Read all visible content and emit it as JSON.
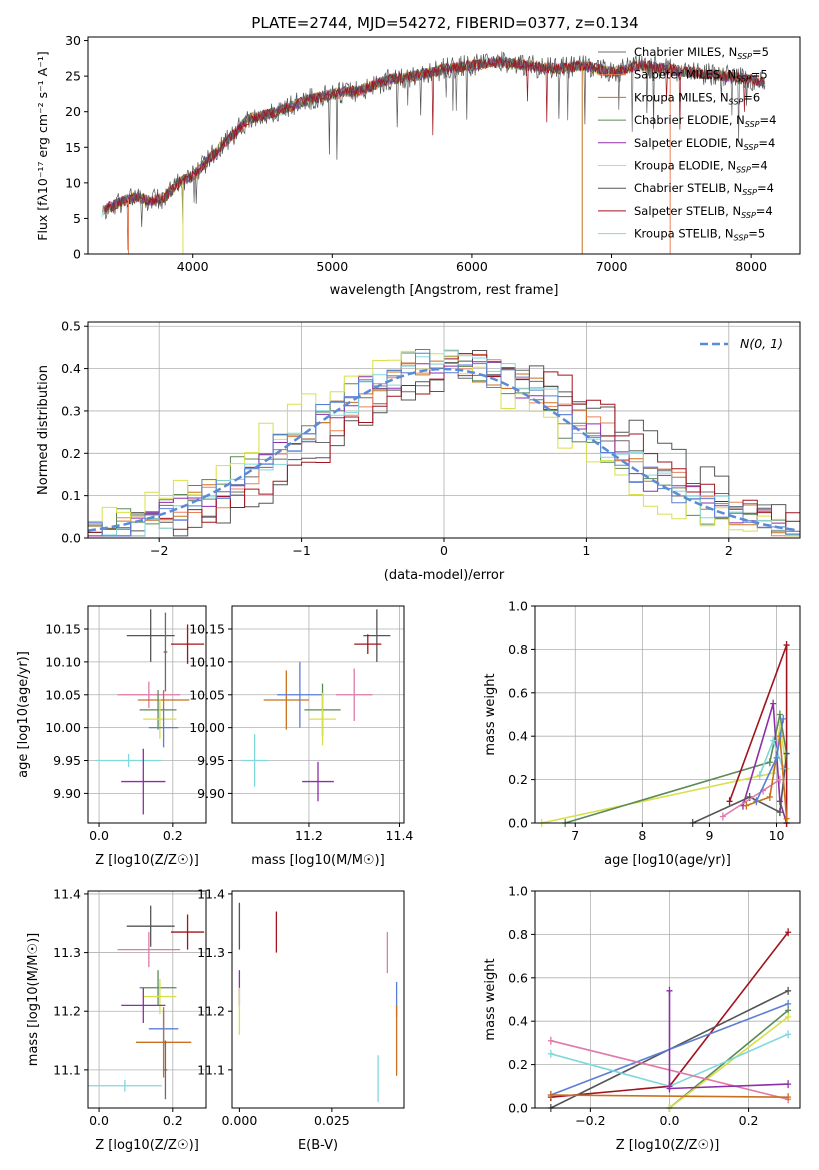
{
  "figure_title": "PLATE=2744, MJD=54272, FIBERID=0377, z=0.134",
  "colors": {
    "Chabrier MILES": "#6c6c6c",
    "Salpeter MILES": "#e8825a",
    "Kroupa MILES": "#c9701e",
    "Chabrier ELODIE": "#5a8a55",
    "Salpeter ELODIE": "#8e2fa8",
    "Kroupa ELODIE": "#d7e04a",
    "Chabrier STELIB": "#555555",
    "Salpeter STELIB": "#a0141e",
    "Kroupa STELIB": "#7fd8dc",
    "pink": "#e07aa8",
    "blue": "#5a7fd6",
    "green2": "#6fbf6a",
    "normal": "#5b8ad6",
    "grid": "#b0b0b0"
  },
  "chart_data": [
    {
      "id": "spectrum",
      "type": "line",
      "title": "PLATE=2744, MJD=54272, FIBERID=0377, z=0.134",
      "xlabel": "wavelength [Angstrom, rest frame]",
      "ylabel": "Flux [f_λ 10^-17 erg cm^-2 s^-1 A^-1]",
      "xlim": [
        3250,
        8350
      ],
      "ylim": [
        0,
        30.5
      ],
      "xticks": [
        4000,
        5000,
        6000,
        7000,
        8000
      ],
      "yticks": [
        0,
        5,
        10,
        15,
        20,
        25,
        30
      ],
      "grid": false,
      "legend_position": "upper right",
      "series": [
        {
          "name": "Chabrier MILES, N_SSP=5"
        },
        {
          "name": "Salpeter MILES, N_SSP=5"
        },
        {
          "name": "Kroupa MILES, N_SSP=6"
        },
        {
          "name": "Chabrier ELODIE, N_SSP=4"
        },
        {
          "name": "Salpeter ELODIE, N_SSP=4"
        },
        {
          "name": "Kroupa ELODIE, N_SSP=4"
        },
        {
          "name": "Chabrier STELIB, N_SSP=4"
        },
        {
          "name": "Salpeter STELIB, N_SSP=4"
        },
        {
          "name": "Kroupa STELIB, N_SSP=5"
        }
      ],
      "continuum": {
        "x": [
          3350,
          3500,
          3600,
          3700,
          3800,
          3900,
          4000,
          4100,
          4200,
          4300,
          4400,
          4600,
          4800,
          5000,
          5200,
          5400,
          5600,
          5800,
          6000,
          6200,
          6400,
          6600,
          6800,
          7000,
          7200,
          7400,
          7600,
          7800,
          8000,
          8100
        ],
        "y": [
          6,
          7.5,
          8,
          7.5,
          8,
          10,
          11,
          13,
          15,
          17,
          19,
          20,
          21.5,
          22.5,
          23,
          24.5,
          25,
          26,
          26.5,
          27,
          26.5,
          26,
          26.5,
          25.5,
          26.5,
          26,
          25.5,
          25,
          24.5,
          24
        ]
      }
    },
    {
      "id": "residual_hist",
      "type": "line",
      "xlabel": "(data-model)/error",
      "ylabel": "Normed distribution",
      "xlim": [
        -2.5,
        2.5
      ],
      "ylim": [
        0,
        0.51
      ],
      "xticks": [
        -2,
        -1,
        0,
        1,
        2
      ],
      "yticks": [
        0.0,
        0.1,
        0.2,
        0.3,
        0.4,
        0.5
      ],
      "grid": true,
      "legend_position": "upper right",
      "legend": [
        "N(0,1)"
      ],
      "bin_width": 0.1
    },
    {
      "id": "age_vs_Z",
      "type": "scatter",
      "xlabel": "Z [log10(Z/Z☉)]",
      "ylabel": "age [log10(age/yr)]",
      "xlim": [
        -0.03,
        0.29
      ],
      "ylim": [
        9.855,
        10.185
      ],
      "xticks": [
        0.0,
        0.2
      ],
      "yticks": [
        9.9,
        9.95,
        10.0,
        10.05,
        10.1,
        10.15
      ],
      "grid": true,
      "points": [
        {
          "c": "Chabrier STELIB",
          "x": 0.14,
          "y": 10.14,
          "xe": 0.065,
          "ye": 0.04
        },
        {
          "c": "Salpeter STELIB",
          "x": 0.24,
          "y": 10.127,
          "xe": 0.045,
          "ye": 0.03
        },
        {
          "c": "pink",
          "x": 0.135,
          "y": 10.05,
          "xe": 0.085,
          "ye": 0.02
        },
        {
          "c": "Kroupa MILES",
          "x": 0.175,
          "y": 10.042,
          "xe": 0.07,
          "ye": 0.015
        },
        {
          "c": "Chabrier ELODIE",
          "x": 0.16,
          "y": 10.027,
          "xe": 0.05,
          "ye": 0.03
        },
        {
          "c": "Kroupa ELODIE",
          "x": 0.165,
          "y": 10.013,
          "xe": 0.045,
          "ye": 0.03
        },
        {
          "c": "blue",
          "x": 0.175,
          "y": 10.0,
          "xe": 0.04,
          "ye": 0.03
        },
        {
          "c": "Kroupa STELIB",
          "x": 0.08,
          "y": 9.95,
          "xe": 0.09,
          "ye": 0.01
        },
        {
          "c": "Salpeter ELODIE",
          "x": 0.12,
          "y": 9.918,
          "xe": 0.06,
          "ye": 0.05
        },
        {
          "c": "Chabrier MILES",
          "x": 0.18,
          "y": 10.115,
          "xe": 0.005,
          "ye": 0.06
        }
      ]
    },
    {
      "id": "age_vs_mass",
      "type": "scatter",
      "xlabel": "mass [log10(M/M☉)]",
      "ylabel": "",
      "xlim": [
        11.03,
        11.41
      ],
      "ylim": [
        9.855,
        10.185
      ],
      "xticks": [
        11.2,
        11.4
      ],
      "yticks": [
        9.9,
        9.95,
        10.0,
        10.05,
        10.1,
        10.15
      ],
      "grid": true,
      "points": [
        {
          "c": "Chabrier STELIB",
          "x": 11.35,
          "y": 10.14,
          "xe": 0.03,
          "ye": 0.04
        },
        {
          "c": "Salpeter STELIB",
          "x": 11.33,
          "y": 10.127,
          "xe": 0.03,
          "ye": 0.015
        },
        {
          "c": "pink",
          "x": 11.3,
          "y": 10.05,
          "xe": 0.04,
          "ye": 0.04
        },
        {
          "c": "Kroupa MILES",
          "x": 11.15,
          "y": 10.042,
          "xe": 0.05,
          "ye": 0.045
        },
        {
          "c": "blue",
          "x": 11.18,
          "y": 10.05,
          "xe": 0.05,
          "ye": 0.05
        },
        {
          "c": "Chabrier ELODIE",
          "x": 11.23,
          "y": 10.027,
          "xe": 0.04,
          "ye": 0.04
        },
        {
          "c": "Kroupa ELODIE",
          "x": 11.23,
          "y": 10.013,
          "xe": 0.03,
          "ye": 0.04
        },
        {
          "c": "Kroupa STELIB",
          "x": 11.08,
          "y": 9.95,
          "xe": 0.03,
          "ye": 0.04
        },
        {
          "c": "Salpeter ELODIE",
          "x": 11.22,
          "y": 9.918,
          "xe": 0.035,
          "ye": 0.03
        }
      ]
    },
    {
      "id": "weight_vs_age",
      "type": "line",
      "xlabel": "age [log10(age/yr)]",
      "ylabel": "mass weight",
      "xlim": [
        6.4,
        10.35
      ],
      "ylim": [
        0,
        1.0
      ],
      "xticks": [
        7,
        8,
        9,
        10
      ],
      "yticks": [
        0.0,
        0.2,
        0.4,
        0.6,
        0.8,
        1.0
      ],
      "grid": true,
      "series": [
        {
          "c": "Kroupa ELODIE",
          "x": [
            6.5,
            9.95,
            10.05,
            10.15
          ],
          "y": [
            0.0,
            0.23,
            0.45,
            0.25
          ]
        },
        {
          "c": "Chabrier ELODIE",
          "x": [
            6.85,
            9.9,
            10.05,
            10.15
          ],
          "y": [
            0.0,
            0.28,
            0.5,
            0.32
          ]
        },
        {
          "c": "Salpeter ELODIE",
          "x": [
            9.5,
            9.95,
            10.05,
            10.15
          ],
          "y": [
            0.08,
            0.55,
            0.1,
            0.0
          ]
        },
        {
          "c": "Salpeter STELIB",
          "x": [
            9.3,
            10.15,
            10.15
          ],
          "y": [
            0.1,
            0.82,
            0.0
          ]
        },
        {
          "c": "Chabrier STELIB",
          "x": [
            8.75,
            9.6,
            10.05,
            10.15
          ],
          "y": [
            0.0,
            0.12,
            0.05,
            0.32
          ]
        },
        {
          "c": "Kroupa STELIB",
          "x": [
            9.75,
            9.95,
            10.1
          ],
          "y": [
            0.22,
            0.38,
            0.25
          ]
        },
        {
          "c": "pink",
          "x": [
            9.2,
            9.8,
            10.05
          ],
          "y": [
            0.03,
            0.15,
            0.2
          ]
        },
        {
          "c": "Kroupa MILES",
          "x": [
            9.55,
            9.9,
            10.05,
            10.15
          ],
          "y": [
            0.08,
            0.12,
            0.4,
            0.02
          ]
        },
        {
          "c": "blue",
          "x": [
            9.7,
            10.0,
            10.1
          ],
          "y": [
            0.1,
            0.3,
            0.48
          ]
        }
      ]
    },
    {
      "id": "mass_vs_Z",
      "type": "scatter",
      "xlabel": "Z [log10(Z/Z☉)]",
      "ylabel": "mass [log10(M/M☉)]",
      "xlim": [
        -0.03,
        0.29
      ],
      "ylim": [
        11.035,
        11.405
      ],
      "xticks": [
        0.0,
        0.2
      ],
      "yticks": [
        11.1,
        11.2,
        11.3,
        11.4
      ],
      "grid": true,
      "points": [
        {
          "c": "Chabrier STELIB",
          "x": 0.14,
          "y": 11.345,
          "xe": 0.065,
          "ye": 0.035
        },
        {
          "c": "Salpeter STELIB",
          "x": 0.24,
          "y": 11.335,
          "xe": 0.045,
          "ye": 0.03
        },
        {
          "c": "pink",
          "x": 0.135,
          "y": 11.305,
          "xe": 0.085,
          "ye": 0.03
        },
        {
          "c": "Chabrier ELODIE",
          "x": 0.16,
          "y": 11.24,
          "xe": 0.05,
          "ye": 0.03
        },
        {
          "c": "Kroupa ELODIE",
          "x": 0.165,
          "y": 11.225,
          "xe": 0.045,
          "ye": 0.03
        },
        {
          "c": "Salpeter ELODIE",
          "x": 0.12,
          "y": 11.21,
          "xe": 0.06,
          "ye": 0.03
        },
        {
          "c": "blue",
          "x": 0.175,
          "y": 11.17,
          "xe": 0.04,
          "ye": 0.03
        },
        {
          "c": "Kroupa MILES",
          "x": 0.175,
          "y": 11.147,
          "xe": 0.075,
          "ye": 0.06
        },
        {
          "c": "Kroupa STELIB",
          "x": 0.07,
          "y": 11.073,
          "xe": 0.1,
          "ye": 0.01
        },
        {
          "c": "Chabrier MILES",
          "x": 0.18,
          "y": 11.1,
          "xe": 0.005,
          "ye": 0.05
        }
      ]
    },
    {
      "id": "mass_vs_ebv",
      "type": "scatter",
      "xlabel": "E(B-V)",
      "ylabel": "",
      "xlim": [
        -0.002,
        0.0445
      ],
      "ylim": [
        11.035,
        11.405
      ],
      "xticks": [
        0.0,
        0.025
      ],
      "yticks": [
        11.1,
        11.2,
        11.3,
        11.4
      ],
      "grid": false,
      "points": [
        {
          "c": "Chabrier STELIB",
          "x": 0.0,
          "y": 11.345,
          "xe": 0.0,
          "ye": 0.04
        },
        {
          "c": "Salpeter STELIB",
          "x": 0.01,
          "y": 11.335,
          "xe": 0.0,
          "ye": 0.035
        },
        {
          "c": "Salpeter ELODIE",
          "x": 0.0,
          "y": 11.24,
          "xe": 0.0,
          "ye": 0.03
        },
        {
          "c": "Kroupa ELODIE",
          "x": 0.0,
          "y": 11.2,
          "xe": 0.0,
          "ye": 0.04
        },
        {
          "c": "pink",
          "x": 0.04,
          "y": 11.3,
          "xe": 0.0,
          "ye": 0.035
        },
        {
          "c": "blue",
          "x": 0.0425,
          "y": 11.22,
          "xe": 0.0,
          "ye": 0.03
        },
        {
          "c": "Kroupa MILES",
          "x": 0.0425,
          "y": 11.15,
          "xe": 0.0,
          "ye": 0.06
        },
        {
          "c": "Kroupa STELIB",
          "x": 0.0375,
          "y": 11.085,
          "xe": 0.0,
          "ye": 0.04
        }
      ]
    },
    {
      "id": "weight_vs_Z",
      "type": "line",
      "xlabel": "Z [log10(Z/Z☉)]",
      "ylabel": "mass weight",
      "xlim": [
        -0.34,
        0.33
      ],
      "ylim": [
        0,
        1.0
      ],
      "xticks": [
        -0.2,
        0.0,
        0.2
      ],
      "yticks": [
        0.0,
        0.2,
        0.4,
        0.6,
        0.8,
        1.0
      ],
      "grid": true,
      "series": [
        {
          "c": "Salpeter STELIB",
          "x": [
            -0.3,
            0.0,
            0.3
          ],
          "y": [
            0.05,
            0.1,
            0.81
          ]
        },
        {
          "c": "Chabrier STELIB",
          "x": [
            -0.3,
            0.3
          ],
          "y": [
            0.0,
            0.54
          ]
        },
        {
          "c": "blue",
          "x": [
            -0.3,
            0.3
          ],
          "y": [
            0.06,
            0.48
          ]
        },
        {
          "c": "Chabrier ELODIE",
          "x": [
            0.0,
            0.3
          ],
          "y": [
            0.0,
            0.45
          ]
        },
        {
          "c": "Kroupa ELODIE",
          "x": [
            0.0,
            0.3
          ],
          "y": [
            0.0,
            0.42
          ]
        },
        {
          "c": "Kroupa STELIB",
          "x": [
            -0.3,
            0.0,
            0.3
          ],
          "y": [
            0.25,
            0.1,
            0.34
          ]
        },
        {
          "c": "pink",
          "x": [
            -0.3,
            0.3
          ],
          "y": [
            0.31,
            0.04
          ]
        },
        {
          "c": "Kroupa MILES",
          "x": [
            -0.3,
            0.3
          ],
          "y": [
            0.06,
            0.05
          ]
        },
        {
          "c": "Salpeter ELODIE",
          "x": [
            0.0,
            0.3
          ],
          "y": [
            0.09,
            0.11
          ]
        },
        {
          "c": "Salpeter ELODIE",
          "x": [
            0.0,
            0.0
          ],
          "y": [
            0.1,
            0.54
          ]
        }
      ]
    }
  ]
}
